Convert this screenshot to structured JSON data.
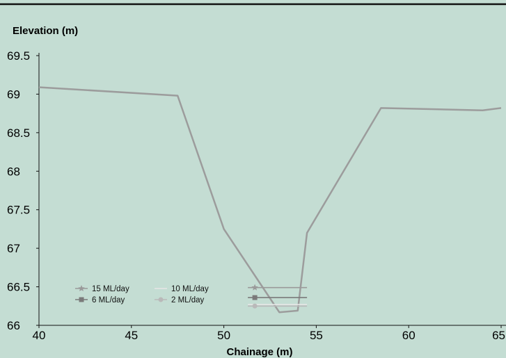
{
  "chart_data": {
    "type": "line",
    "ylabel": "Elevation (m)",
    "xlabel": "Chainage (m)",
    "xlim": [
      40,
      65
    ],
    "ylim": [
      66,
      69.5
    ],
    "x_ticks": [
      "40",
      "45",
      "50",
      "55",
      "60",
      "65"
    ],
    "y_ticks": [
      "66",
      "66.5",
      "67",
      "67.5",
      "68",
      "68.5",
      "69",
      "69.5"
    ],
    "grid": false,
    "legend_position": "bottom-left",
    "cross_section": {
      "x": [
        40,
        47.5,
        50,
        53,
        54,
        54.5,
        58.5,
        64,
        65
      ],
      "y": [
        69.09,
        68.98,
        67.25,
        66.17,
        66.19,
        67.2,
        68.82,
        68.79,
        68.82
      ],
      "color": "#9c9c9c"
    },
    "series": [
      {
        "name": "15 ML/day",
        "x": [
          51.3,
          54.5
        ],
        "y": [
          66.49,
          66.49
        ],
        "color": "#9a9a9a",
        "marker": "star"
      },
      {
        "name": "6 ML/day",
        "x": [
          51.3,
          54.5
        ],
        "y": [
          66.36,
          66.36
        ],
        "color": "#7a7a7a",
        "marker": "square"
      },
      {
        "name": "10 ML/day",
        "x": [
          51.3,
          54.5
        ],
        "y": [
          66.27,
          66.27
        ],
        "color": "#e6e6e6",
        "marker": "line"
      },
      {
        "name": "2 ML/day",
        "x": [
          51.3,
          54.5
        ],
        "y": [
          66.25,
          66.25
        ],
        "color": "#b9b9b9",
        "marker": "circle"
      }
    ]
  }
}
